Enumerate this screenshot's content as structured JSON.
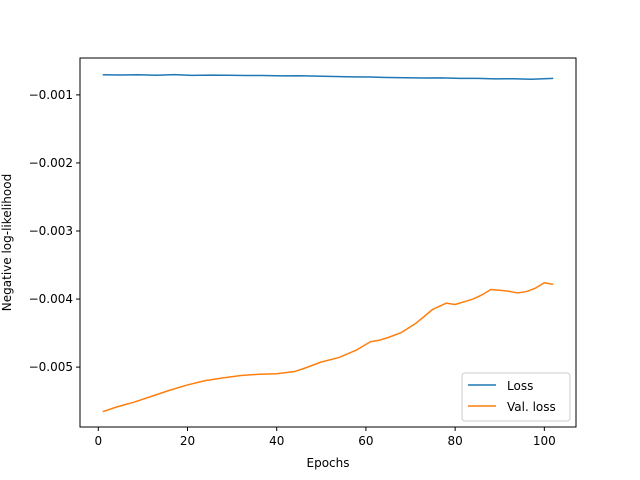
{
  "chart_data": {
    "type": "line",
    "title": "",
    "xlabel": "Epochs",
    "ylabel": "Negative log-likelihood",
    "xlim": [
      -4.1,
      107.1
    ],
    "ylim": [
      -0.00588,
      -0.000458
    ],
    "xticks": [
      0,
      20,
      40,
      60,
      80,
      100
    ],
    "xtick_labels": [
      "0",
      "20",
      "40",
      "60",
      "80",
      "100"
    ],
    "yticks": [
      -0.001,
      -0.002,
      -0.003,
      -0.004,
      -0.005
    ],
    "ytick_labels": [
      "−0.001",
      "−0.002",
      "−0.003",
      "−0.004",
      "−0.005"
    ],
    "grid": false,
    "legend": {
      "position": "lower-right",
      "entries": [
        "Loss",
        "Val. loss"
      ]
    },
    "series": [
      {
        "name": "Loss",
        "color": "#1f77b4",
        "x": [
          1,
          5,
          9,
          13,
          17,
          21,
          25,
          29,
          33,
          37,
          41,
          45,
          49,
          53,
          57,
          61,
          65,
          69,
          73,
          77,
          81,
          85,
          89,
          93,
          97,
          102
        ],
        "y": [
          -0.000705,
          -0.000707,
          -0.000705,
          -0.000712,
          -0.000702,
          -0.000714,
          -0.00071,
          -0.000712,
          -0.000716,
          -0.000716,
          -0.000721,
          -0.000718,
          -0.000724,
          -0.00073,
          -0.000735,
          -0.000738,
          -0.000745,
          -0.000748,
          -0.000752,
          -0.00075,
          -0.000758,
          -0.000757,
          -0.000764,
          -0.000762,
          -0.00077,
          -0.000758
        ]
      },
      {
        "name": "Val. loss",
        "color": "#ff7f0e",
        "x": [
          1,
          4,
          8,
          12,
          16,
          20,
          24,
          28,
          32,
          36,
          40,
          44,
          46,
          50,
          54,
          58,
          61,
          63,
          65,
          68,
          71,
          73,
          75,
          78,
          80,
          82,
          84,
          86,
          88,
          90,
          92,
          94,
          96,
          98,
          100,
          102
        ],
        "y": [
          -0.005655,
          -0.005588,
          -0.005515,
          -0.005428,
          -0.00534,
          -0.005262,
          -0.005198,
          -0.005158,
          -0.005124,
          -0.005105,
          -0.005098,
          -0.005065,
          -0.005022,
          -0.004925,
          -0.004858,
          -0.004745,
          -0.004628,
          -0.004605,
          -0.004565,
          -0.00449,
          -0.004365,
          -0.00426,
          -0.00415,
          -0.00406,
          -0.00408,
          -0.00404,
          -0.004,
          -0.00394,
          -0.00386,
          -0.00387,
          -0.003885,
          -0.00391,
          -0.00389,
          -0.00384,
          -0.00376,
          -0.003785
        ]
      }
    ]
  }
}
